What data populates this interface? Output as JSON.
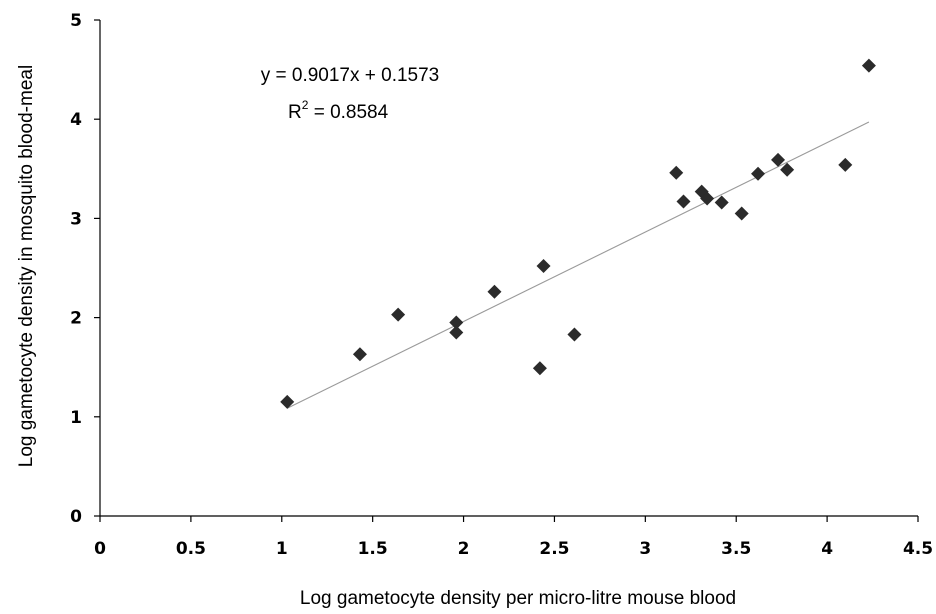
{
  "chart_data": {
    "type": "scatter",
    "title": "",
    "xlabel": "Log gametocyte density per micro-litre mouse blood",
    "ylabel": "Log gametocyte density in mosquito blood-meal",
    "xlim": [
      0,
      4.5
    ],
    "ylim": [
      0,
      5
    ],
    "x_ticks": [
      "0",
      "0.5",
      "1",
      "1.5",
      "2",
      "2.5",
      "3",
      "3.5",
      "4",
      "4.5"
    ],
    "y_ticks": [
      "0",
      "1",
      "2",
      "3",
      "4",
      "5"
    ],
    "grid": false,
    "legend": "none",
    "marker": "diamond",
    "marker_color": "#2b2b2b",
    "trendline_color": "#9a9a9a",
    "series": [
      {
        "points": [
          {
            "x": 1.03,
            "y": 1.15
          },
          {
            "x": 1.43,
            "y": 1.63
          },
          {
            "x": 1.64,
            "y": 2.03
          },
          {
            "x": 1.96,
            "y": 1.95
          },
          {
            "x": 1.96,
            "y": 1.85
          },
          {
            "x": 2.17,
            "y": 2.26
          },
          {
            "x": 2.42,
            "y": 1.49
          },
          {
            "x": 2.44,
            "y": 2.52
          },
          {
            "x": 2.61,
            "y": 1.83
          },
          {
            "x": 3.17,
            "y": 3.46
          },
          {
            "x": 3.21,
            "y": 3.17
          },
          {
            "x": 3.31,
            "y": 3.27
          },
          {
            "x": 3.34,
            "y": 3.2
          },
          {
            "x": 3.42,
            "y": 3.16
          },
          {
            "x": 3.53,
            "y": 3.05
          },
          {
            "x": 3.62,
            "y": 3.45
          },
          {
            "x": 3.73,
            "y": 3.59
          },
          {
            "x": 3.78,
            "y": 3.49
          },
          {
            "x": 4.1,
            "y": 3.54
          },
          {
            "x": 4.23,
            "y": 4.54
          }
        ]
      }
    ],
    "trendline": {
      "slope": 0.9017,
      "intercept": 0.1573,
      "x_range": [
        1.03,
        4.23
      ]
    },
    "annotation": {
      "equation": "y = 0.9017x + 0.1573",
      "r2_prefix": "R",
      "r2_superscript": "2",
      "r2_value": " = 0.8584"
    }
  }
}
